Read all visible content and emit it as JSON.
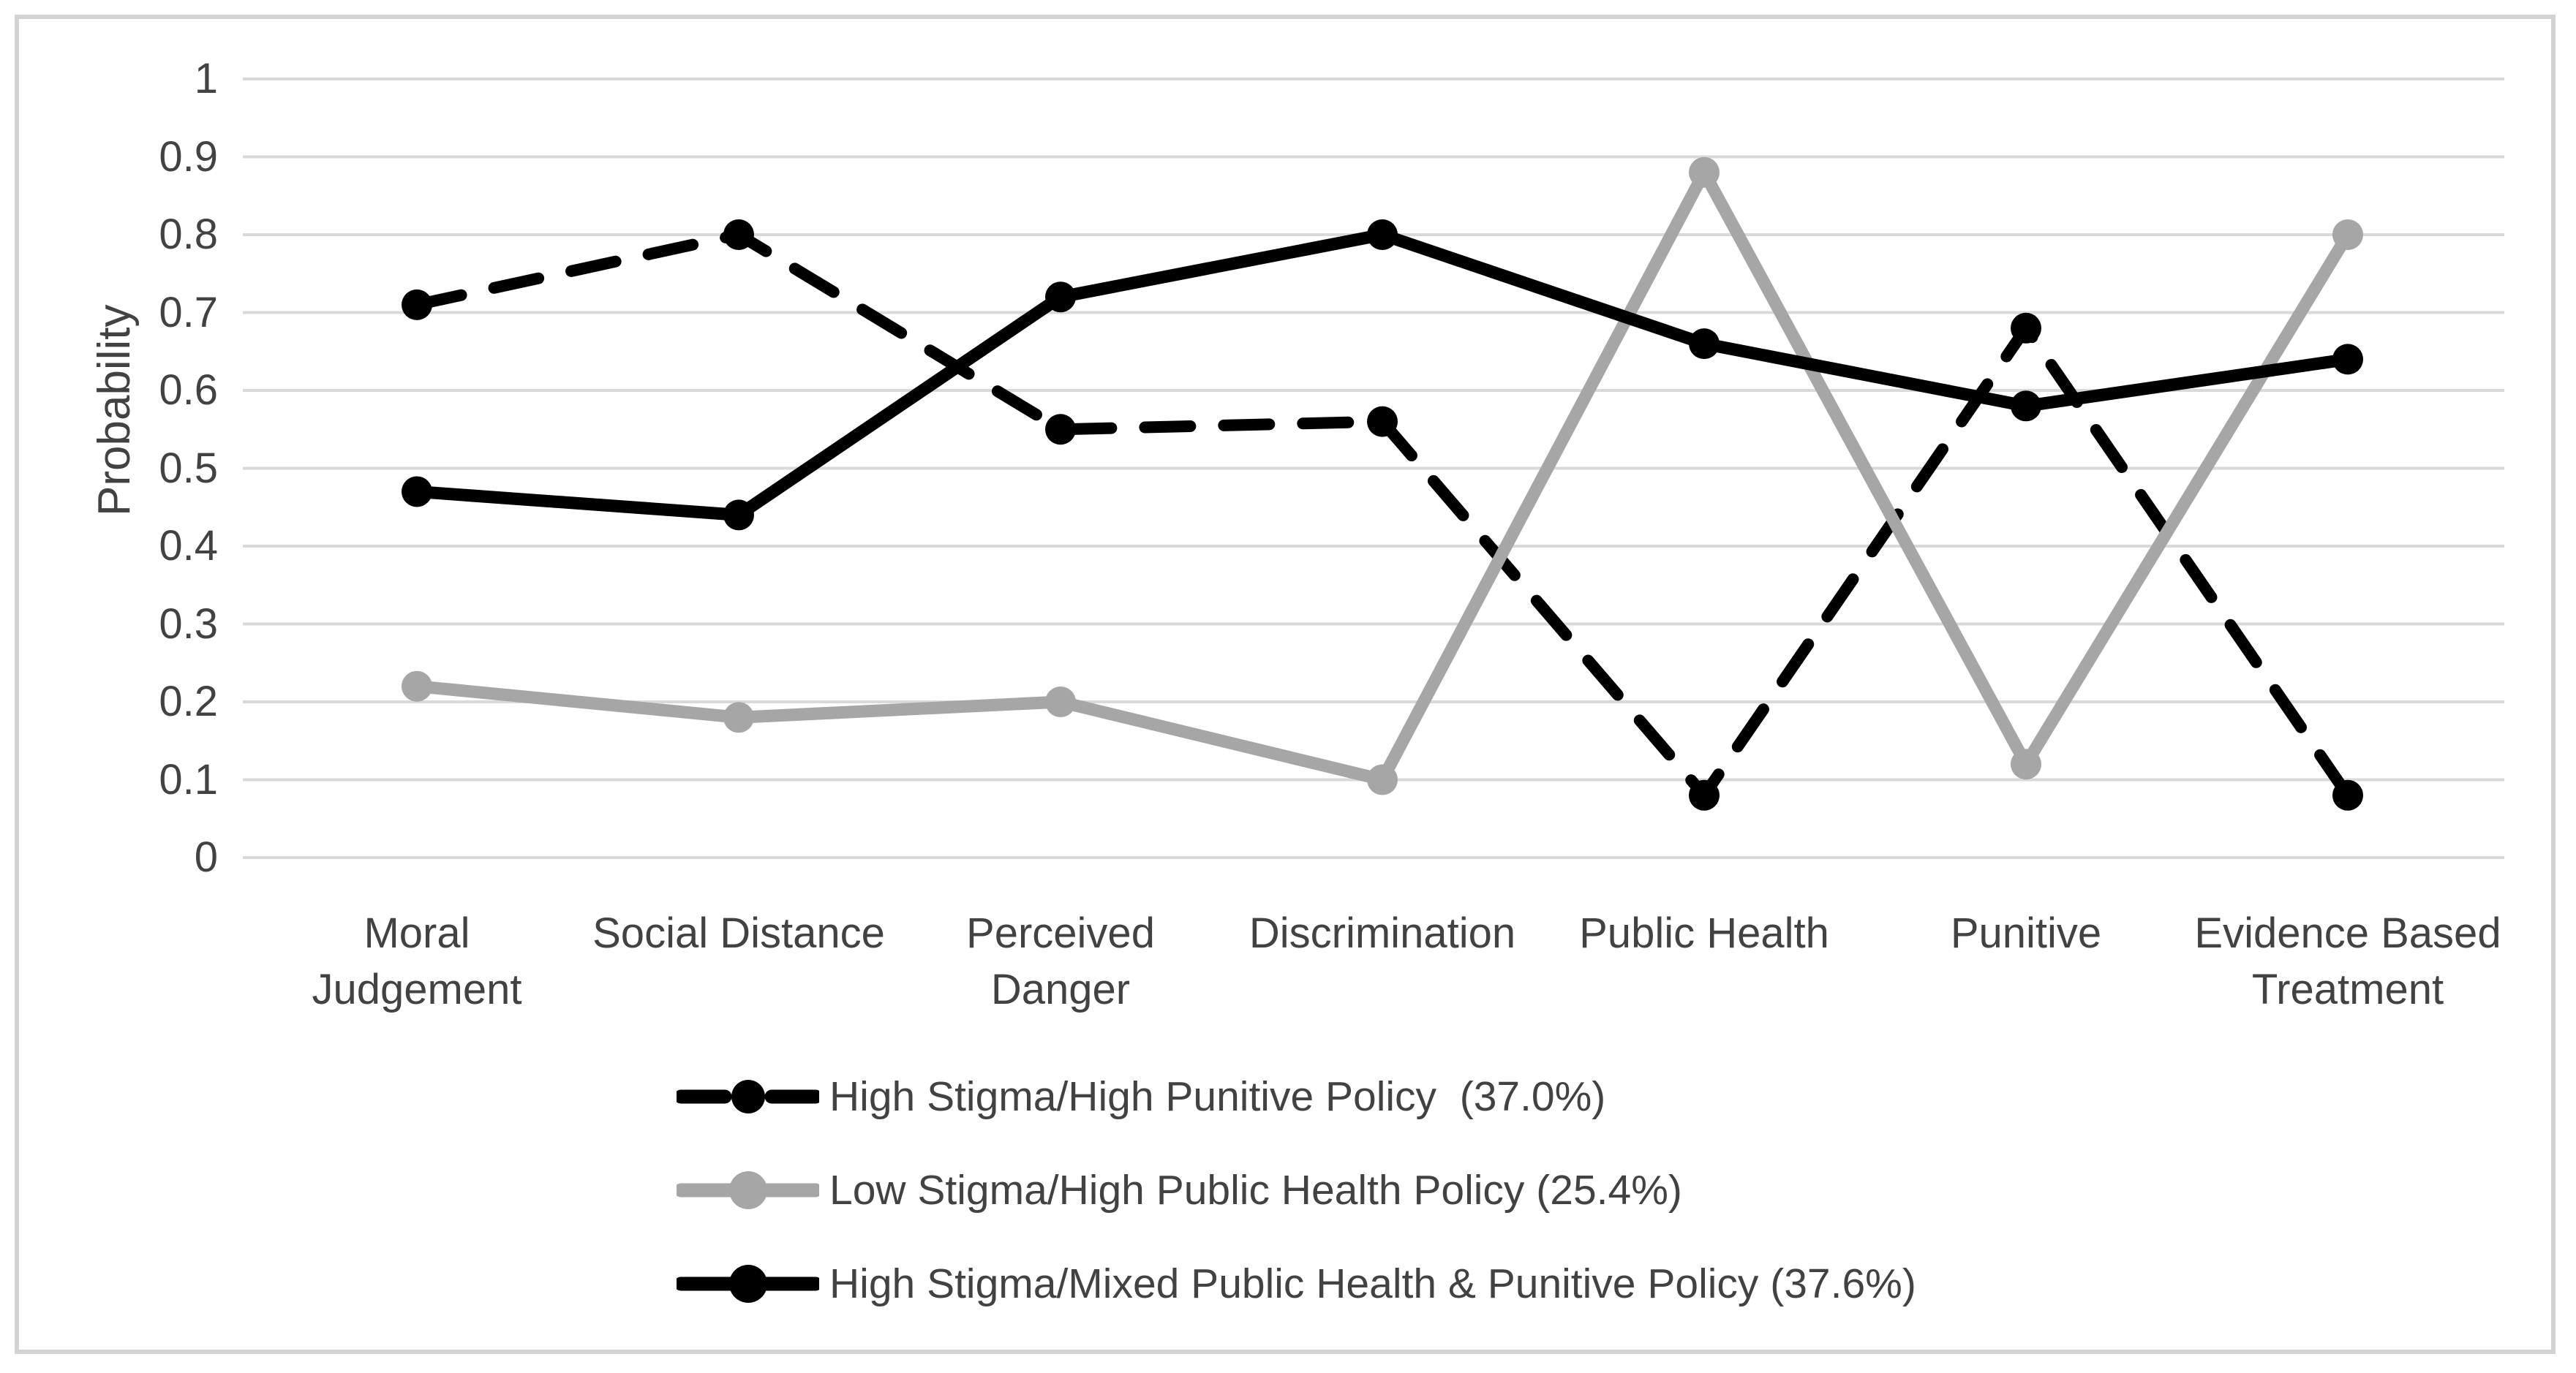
{
  "chart_data": {
    "type": "line",
    "title": "",
    "ylabel": "Probability",
    "ylim": [
      0,
      1
    ],
    "ytick_labels": [
      "0",
      "0.1",
      "0.2",
      "0.3",
      "0.4",
      "0.5",
      "0.6",
      "0.7",
      "0.8",
      "0.9",
      "1"
    ],
    "grid": true,
    "legend_position": "bottom-left",
    "categories": [
      "Moral\nJudgement",
      "Social Distance",
      "Perceived\nDanger",
      "Discrimination",
      "Public Health",
      "Punitive",
      "Evidence Based\nTreatment"
    ],
    "series": [
      {
        "name": "High Stigma/High Punitive Policy  (37.0%)",
        "style": "dashed",
        "color": "#000000",
        "values": [
          0.71,
          0.8,
          0.55,
          0.56,
          0.08,
          0.68,
          0.08
        ]
      },
      {
        "name": "Low Stigma/High Public Health Policy (25.4%)",
        "style": "solid",
        "color": "#a6a6a6",
        "values": [
          0.22,
          0.18,
          0.2,
          0.1,
          0.88,
          0.12,
          0.8
        ]
      },
      {
        "name": "High Stigma/Mixed Public Health & Punitive Policy (37.6%)",
        "style": "solid",
        "color": "#000000",
        "values": [
          0.47,
          0.44,
          0.72,
          0.8,
          0.66,
          0.58,
          0.64
        ]
      }
    ],
    "colors": {
      "gridline": "#d9d9d9",
      "frame": "#d2d2d2",
      "axis_text": "#424242"
    }
  }
}
